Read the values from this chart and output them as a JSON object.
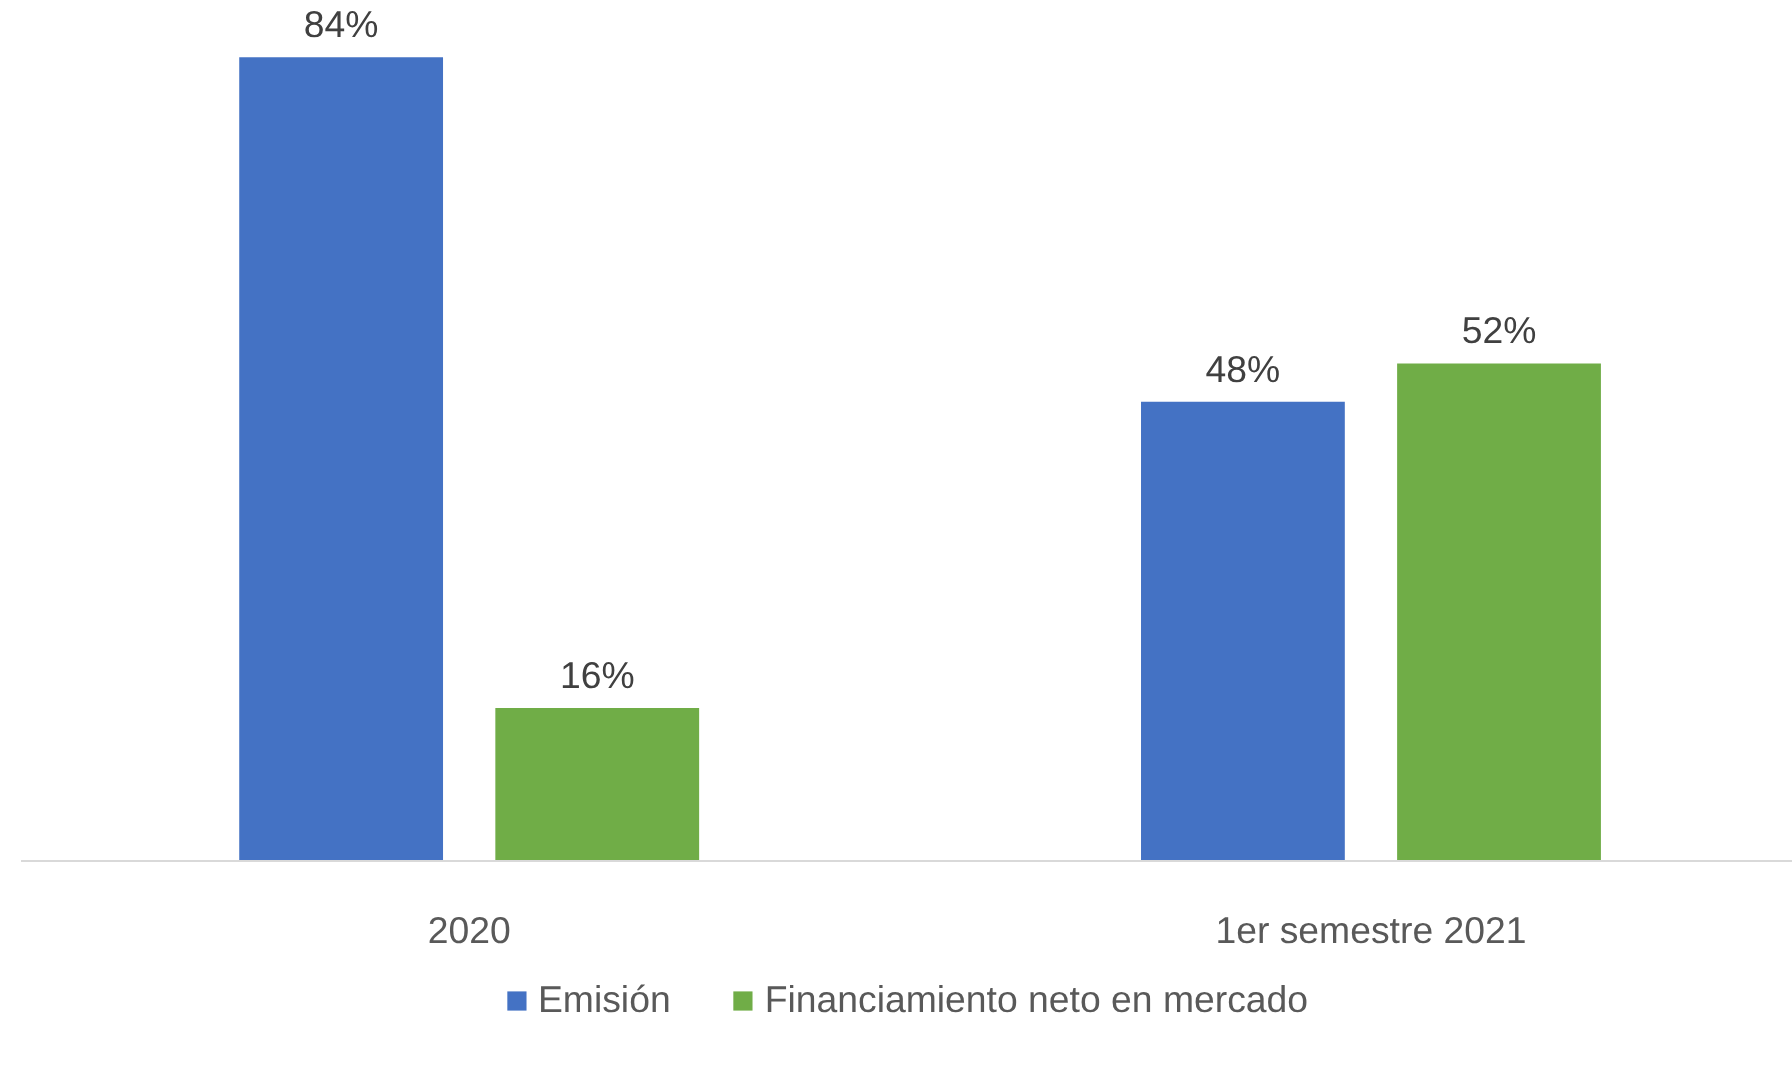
{
  "chart_data": {
    "type": "bar",
    "categories": [
      "2020",
      "1er semestre 2021"
    ],
    "series": [
      {
        "name": "Emisión",
        "color": "#4472c4",
        "values": [
          84,
          48
        ],
        "value_labels": [
          "84%",
          "48%"
        ]
      },
      {
        "name": "Financiamiento neto en mercado",
        "color": "#70ad47",
        "values": [
          16,
          52
        ],
        "value_labels": [
          "16%",
          "52%"
        ]
      }
    ],
    "grid": false,
    "legend": "bottom"
  }
}
